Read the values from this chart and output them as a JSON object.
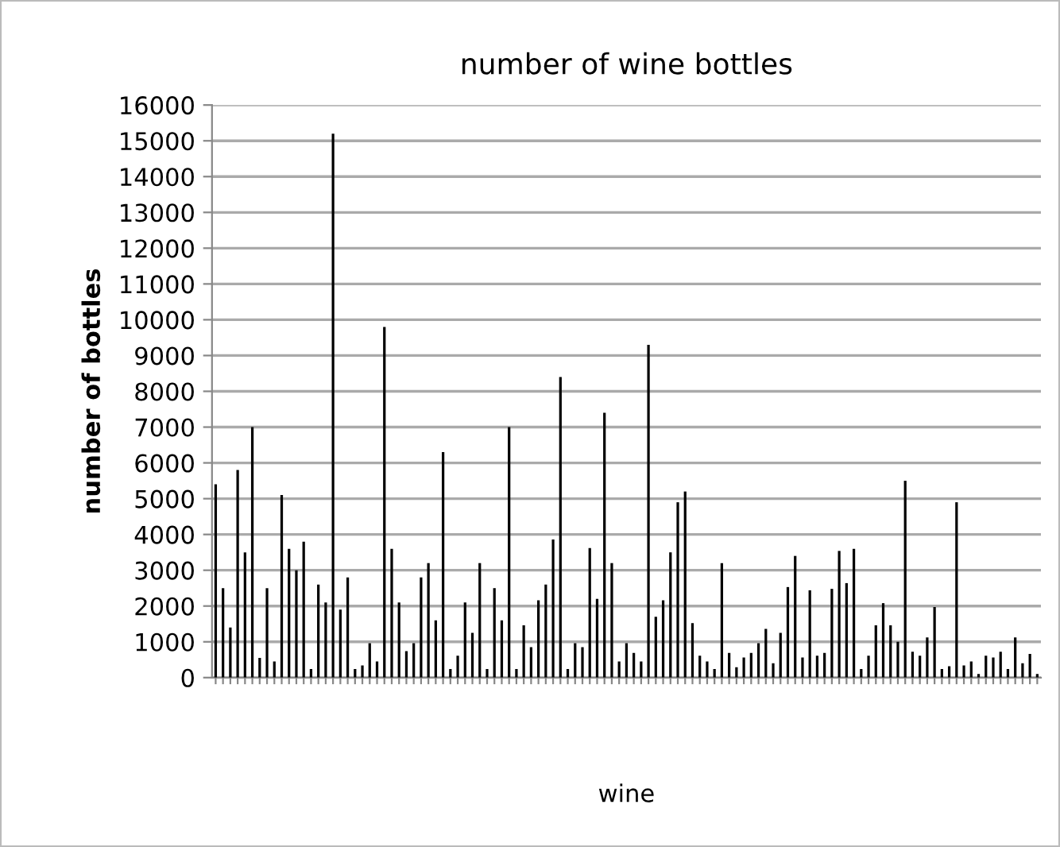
{
  "chart_data": {
    "type": "bar",
    "title": "number of wine bottles",
    "xlabel": "wine",
    "ylabel": "number of bottles",
    "categories": [
      null,
      null,
      null,
      null,
      null,
      null,
      null,
      null,
      null,
      null,
      null,
      null,
      null,
      null,
      null,
      null,
      null,
      null,
      null,
      null,
      null,
      null,
      null,
      null,
      null,
      null,
      null,
      null,
      null,
      null,
      null,
      null,
      null,
      null,
      null,
      null,
      null,
      null,
      null,
      null,
      null,
      null,
      null,
      null,
      null,
      null,
      null,
      null,
      null,
      null,
      null,
      null,
      null,
      null,
      null,
      null,
      null,
      null,
      null,
      null,
      null,
      null,
      null,
      null,
      null,
      null,
      null,
      null,
      null,
      null,
      null,
      null,
      null,
      null,
      null,
      null,
      null,
      null,
      null,
      null,
      null,
      null,
      null,
      null,
      null,
      null,
      null,
      null,
      null,
      null,
      null,
      null,
      null,
      null,
      null,
      null,
      null,
      null,
      null,
      null,
      null,
      null,
      null,
      null,
      null,
      null,
      null,
      null,
      null,
      null,
      null,
      null,
      null
    ],
    "values": [
      5400,
      2500,
      1400,
      5800,
      3500,
      7000,
      550,
      2500,
      450,
      5100,
      3600,
      3000,
      3800,
      240,
      2600,
      2100,
      15200,
      1900,
      2800,
      240,
      340,
      960,
      450,
      9800,
      3600,
      2100,
      740,
      960,
      2800,
      3200,
      1600,
      6300,
      240,
      610,
      2100,
      1250,
      3200,
      240,
      2500,
      1600,
      7000,
      240,
      1460,
      850,
      2160,
      2600,
      3860,
      8400,
      240,
      960,
      850,
      3620,
      2200,
      7400,
      3200,
      450,
      960,
      690,
      450,
      9300,
      1700,
      2160,
      3500,
      4900,
      5200,
      1520,
      610,
      450,
      240,
      3200,
      690,
      290,
      560,
      690,
      960,
      1360,
      400,
      1250,
      2530,
      3400,
      560,
      2440,
      610,
      690,
      2480,
      3540,
      2640,
      3600,
      240,
      610,
      1460,
      2080,
      1460,
      1000,
      5500,
      720,
      610,
      1120,
      1970,
      240,
      320,
      4900,
      340,
      450,
      100,
      610,
      560,
      720,
      240,
      1120,
      400,
      660,
      100
    ],
    "color": "#000000",
    "ylim": [
      0,
      16000
    ],
    "yticks": [
      0,
      1000,
      2000,
      3000,
      4000,
      5000,
      6000,
      7000,
      8000,
      9000,
      10000,
      11000,
      12000,
      13000,
      14000,
      15000,
      16000
    ],
    "grid": "y",
    "tick_labels": "y"
  }
}
